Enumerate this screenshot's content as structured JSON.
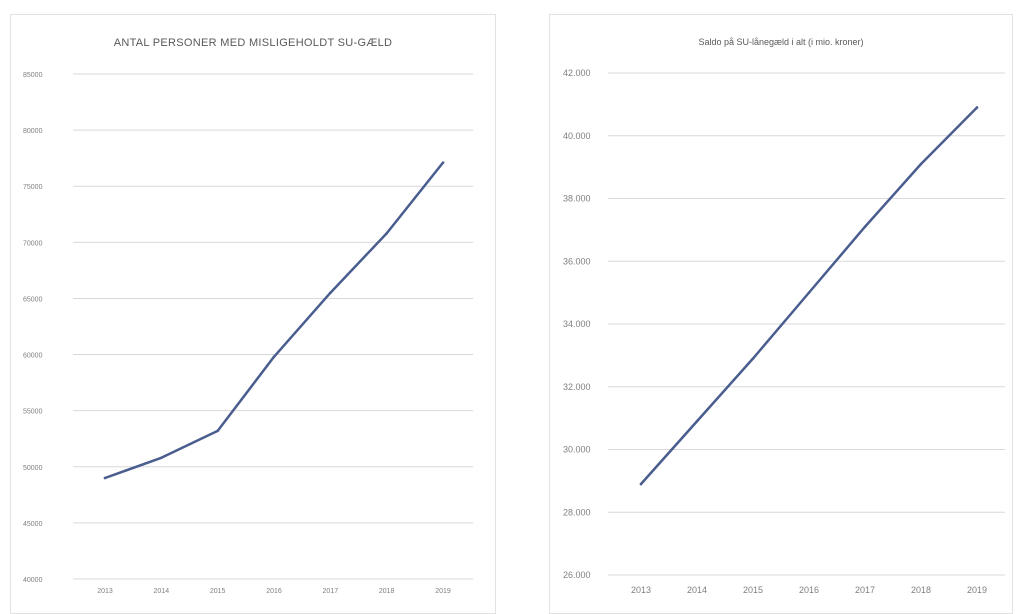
{
  "chart_data": [
    {
      "type": "line",
      "title": "ANTAL PERSONER MED MISLIGEHOLDT SU-GÆLD",
      "x": [
        "2013",
        "2014",
        "2015",
        "2016",
        "2017",
        "2018",
        "2019"
      ],
      "series": [
        {
          "values": [
            49000,
            50800,
            53200,
            59800,
            65500,
            70800,
            77100
          ]
        }
      ],
      "ylim": [
        40000,
        85000
      ],
      "yticks": [
        40000,
        45000,
        50000,
        55000,
        60000,
        65000,
        70000,
        75000,
        80000,
        85000
      ],
      "ytick_labels": [
        "40000",
        "45000",
        "50000",
        "55000",
        "60000",
        "65000",
        "70000",
        "75000",
        "80000",
        "85000"
      ],
      "grid": true,
      "line_color": "#4a5d8f"
    },
    {
      "type": "line",
      "title": "Saldo på SU-lånegæld i alt (i mio. kroner)",
      "x": [
        "2013",
        "2014",
        "2015",
        "2016",
        "2017",
        "2018",
        "2019"
      ],
      "series": [
        {
          "values": [
            28900,
            30900,
            32900,
            35000,
            37100,
            39100,
            40900
          ]
        }
      ],
      "ylim": [
        26000,
        42000
      ],
      "yticks": [
        26000,
        28000,
        30000,
        32000,
        34000,
        36000,
        38000,
        40000,
        42000
      ],
      "ytick_labels": [
        "26.000",
        "28.000",
        "30.000",
        "32.000",
        "34.000",
        "36.000",
        "38.000",
        "40.000",
        "42.000"
      ],
      "grid": true,
      "line_color": "#4a5d8f"
    }
  ]
}
